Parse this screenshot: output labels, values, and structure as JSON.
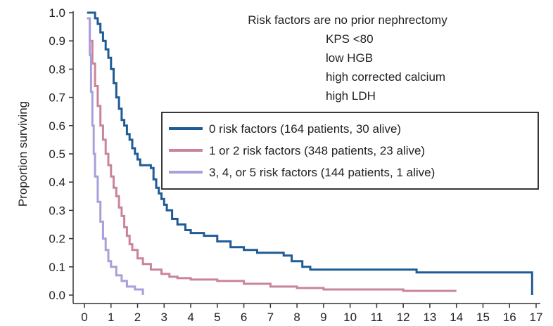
{
  "chart_data": {
    "type": "line",
    "subtype": "kaplan-meier survival curve (step)",
    "ylabel": "Proportion surviving",
    "xlabel": "",
    "xlim": [
      0,
      17
    ],
    "ylim": [
      0,
      1
    ],
    "x_ticks": [
      "0",
      "1",
      "2",
      "3",
      "4",
      "5",
      "6",
      "7",
      "8",
      "9",
      "10",
      "11",
      "12",
      "13",
      "14",
      "15",
      "16",
      "17"
    ],
    "y_ticks": [
      "0.0",
      "0.1",
      "0.2",
      "0.3",
      "0.4",
      "0.5",
      "0.6",
      "0.7",
      "0.8",
      "0.9",
      "1.0"
    ],
    "grid": false,
    "legend_position": "center-right",
    "annotation_lines": [
      "Risk factors are no prior nephrectomy",
      "KPS <80",
      "low HGB",
      "high corrected calcium",
      "high LDH"
    ],
    "series": [
      {
        "name": "0 risk factors (164 patients, 30 alive)",
        "color": "#1f5b96",
        "points": [
          [
            0.1,
            1.0
          ],
          [
            0.3,
            1.0
          ],
          [
            0.4,
            0.98
          ],
          [
            0.5,
            0.96
          ],
          [
            0.6,
            0.93
          ],
          [
            0.7,
            0.9
          ],
          [
            0.8,
            0.87
          ],
          [
            0.9,
            0.84
          ],
          [
            1.0,
            0.8
          ],
          [
            1.1,
            0.75
          ],
          [
            1.2,
            0.7
          ],
          [
            1.3,
            0.66
          ],
          [
            1.4,
            0.62
          ],
          [
            1.5,
            0.6
          ],
          [
            1.6,
            0.57
          ],
          [
            1.7,
            0.55
          ],
          [
            1.8,
            0.52
          ],
          [
            1.9,
            0.5
          ],
          [
            2.0,
            0.48
          ],
          [
            2.1,
            0.46
          ],
          [
            2.5,
            0.45
          ],
          [
            2.6,
            0.41
          ],
          [
            2.7,
            0.38
          ],
          [
            2.8,
            0.36
          ],
          [
            2.9,
            0.34
          ],
          [
            3.0,
            0.32
          ],
          [
            3.1,
            0.3
          ],
          [
            3.3,
            0.27
          ],
          [
            3.5,
            0.25
          ],
          [
            3.8,
            0.23
          ],
          [
            4.0,
            0.22
          ],
          [
            4.5,
            0.21
          ],
          [
            5.0,
            0.19
          ],
          [
            5.5,
            0.17
          ],
          [
            6.0,
            0.16
          ],
          [
            6.5,
            0.15
          ],
          [
            7.5,
            0.14
          ],
          [
            7.8,
            0.12
          ],
          [
            8.2,
            0.1
          ],
          [
            8.5,
            0.09
          ],
          [
            12.5,
            0.08
          ],
          [
            16.8,
            0.08
          ],
          [
            16.85,
            0.0
          ]
        ]
      },
      {
        "name": "1 or 2 risk factors (348 patients, 23 alive)",
        "color": "#c9849b",
        "points": [
          [
            0.1,
            0.98
          ],
          [
            0.2,
            0.9
          ],
          [
            0.3,
            0.82
          ],
          [
            0.4,
            0.74
          ],
          [
            0.5,
            0.67
          ],
          [
            0.6,
            0.6
          ],
          [
            0.7,
            0.55
          ],
          [
            0.8,
            0.5
          ],
          [
            0.9,
            0.46
          ],
          [
            1.0,
            0.42
          ],
          [
            1.1,
            0.38
          ],
          [
            1.2,
            0.35
          ],
          [
            1.3,
            0.31
          ],
          [
            1.4,
            0.28
          ],
          [
            1.5,
            0.24
          ],
          [
            1.6,
            0.21
          ],
          [
            1.7,
            0.18
          ],
          [
            1.8,
            0.16
          ],
          [
            2.0,
            0.13
          ],
          [
            2.2,
            0.11
          ],
          [
            2.5,
            0.09
          ],
          [
            2.9,
            0.075
          ],
          [
            3.2,
            0.065
          ],
          [
            3.5,
            0.06
          ],
          [
            4.0,
            0.055
          ],
          [
            5.0,
            0.05
          ],
          [
            6.0,
            0.04
          ],
          [
            7.0,
            0.03
          ],
          [
            8.0,
            0.025
          ],
          [
            9.0,
            0.02
          ],
          [
            10.0,
            0.02
          ],
          [
            12.0,
            0.015
          ],
          [
            14.0,
            0.015
          ]
        ]
      },
      {
        "name": "3, 4, or 5 risk factors (144 patients, 1 alive)",
        "color": "#a99fd9",
        "points": [
          [
            0.1,
            0.98
          ],
          [
            0.2,
            0.85
          ],
          [
            0.25,
            0.72
          ],
          [
            0.3,
            0.6
          ],
          [
            0.35,
            0.5
          ],
          [
            0.4,
            0.42
          ],
          [
            0.5,
            0.33
          ],
          [
            0.6,
            0.26
          ],
          [
            0.7,
            0.2
          ],
          [
            0.8,
            0.16
          ],
          [
            0.9,
            0.12
          ],
          [
            1.0,
            0.1
          ],
          [
            1.2,
            0.07
          ],
          [
            1.4,
            0.05
          ],
          [
            1.6,
            0.03
          ],
          [
            1.9,
            0.02
          ],
          [
            2.2,
            0.0
          ]
        ]
      }
    ]
  }
}
